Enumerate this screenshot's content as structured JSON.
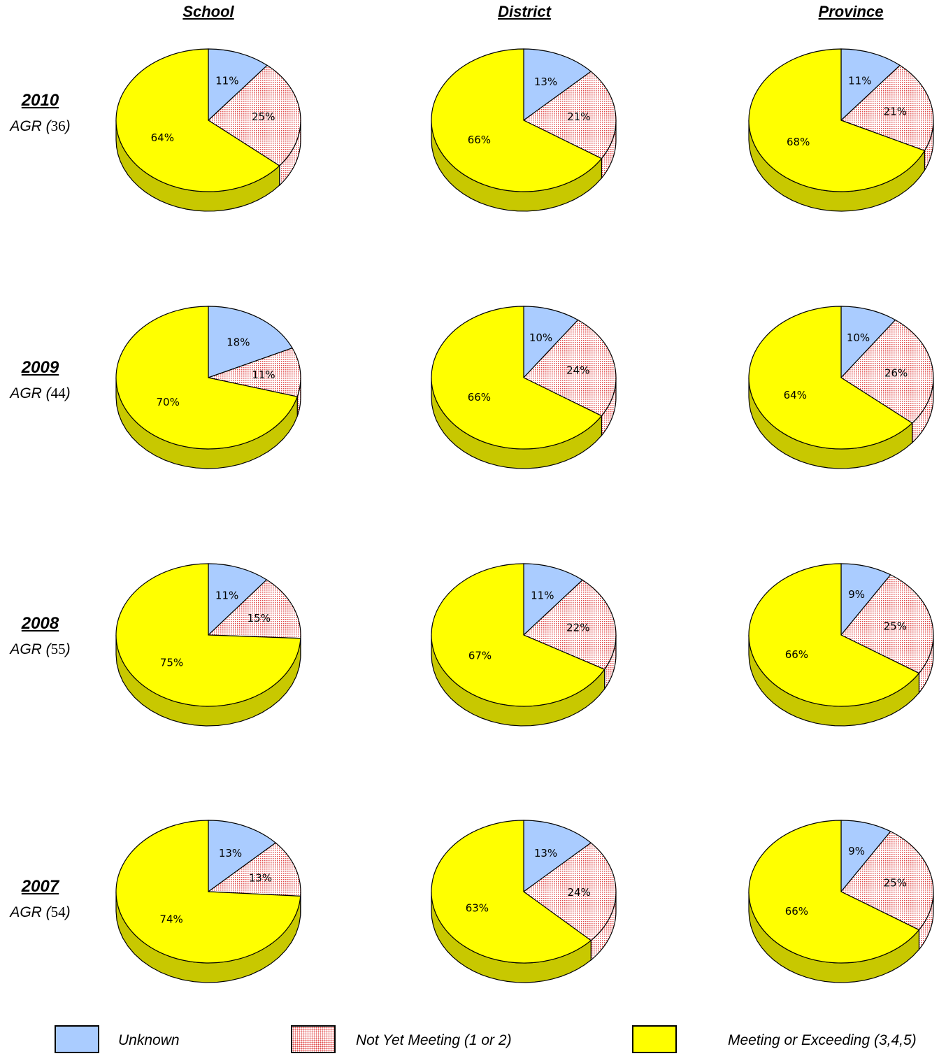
{
  "headers": {
    "school": "School",
    "district": "District",
    "province": "Province"
  },
  "rows": [
    {
      "year": "2010",
      "prefix": "AGR (",
      "count": "36",
      "suffix": ")"
    },
    {
      "year": "2009",
      "prefix": "AGR (",
      "count": "44",
      "suffix": ")"
    },
    {
      "year": "2008",
      "prefix": "AGR (",
      "count": "55",
      "suffix": ")"
    },
    {
      "year": "2007",
      "prefix": "AGR (",
      "count": "54",
      "suffix": ")"
    }
  ],
  "legend": {
    "unknown": "Unknown",
    "not_yet": "Not Yet Meeting (1 or 2)",
    "meeting": "Meeting or Exceeding (3,4,5)"
  },
  "colors": {
    "unknown": "#aaccff",
    "not_yet": "#ffc8c8",
    "meeting": "#ffff00",
    "meeting_side": "#c8c800",
    "outline": "#000000"
  },
  "chart_data": {
    "type": "pie",
    "series_names": [
      "Unknown",
      "Not Yet Meeting (1 or 2)",
      "Meeting or Exceeding (3,4,5)"
    ],
    "columns": [
      "School",
      "District",
      "Province"
    ],
    "rows": [
      "2010",
      "2009",
      "2008",
      "2007"
    ],
    "values": [
      [
        [
          11,
          25,
          64
        ],
        [
          13,
          21,
          66
        ],
        [
          11,
          21,
          68
        ]
      ],
      [
        [
          18,
          11,
          70
        ],
        [
          10,
          24,
          66
        ],
        [
          10,
          26,
          64
        ]
      ],
      [
        [
          11,
          15,
          75
        ],
        [
          11,
          22,
          67
        ],
        [
          9,
          25,
          66
        ]
      ],
      [
        [
          13,
          13,
          74
        ],
        [
          13,
          24,
          63
        ],
        [
          9,
          25,
          66
        ]
      ]
    ],
    "labels": [
      [
        [
          "11%",
          "25%",
          "64%"
        ],
        [
          "13%",
          "21%",
          "66%"
        ],
        [
          "11%",
          "21%",
          "68%"
        ]
      ],
      [
        [
          "18%",
          "11%",
          "70%"
        ],
        [
          "10%",
          "24%",
          "66%"
        ],
        [
          "10%",
          "26%",
          "64%"
        ]
      ],
      [
        [
          "11%",
          "15%",
          "75%"
        ],
        [
          "11%",
          "22%",
          "67%"
        ],
        [
          "9%",
          "25%",
          "66%"
        ]
      ],
      [
        [
          "13%",
          "13%",
          "74%"
        ],
        [
          "13%",
          "24%",
          "63%"
        ],
        [
          "9%",
          "25%",
          "66%"
        ]
      ]
    ]
  }
}
